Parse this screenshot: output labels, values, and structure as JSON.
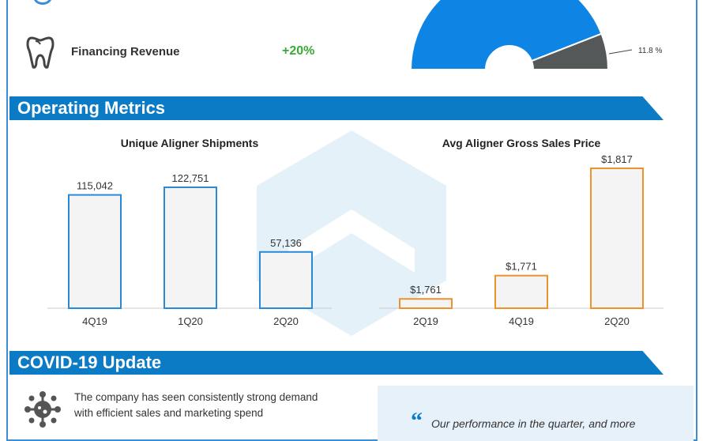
{
  "financing": {
    "label": "Financing Revenue",
    "change": "+20%",
    "icon": "tooth-icon"
  },
  "donut": {
    "slices": [
      {
        "value": 88.2,
        "color": "#0e84e4"
      },
      {
        "value": 11.8,
        "color": "#555858"
      }
    ],
    "label": "11.8 %"
  },
  "sections": {
    "operating": "Operating Metrics",
    "covid": "COVID-19 Update"
  },
  "colors": {
    "banner": "#0a7bc4",
    "green": "#3aaa35",
    "blue_bar": "#2b8ad8",
    "orange_bar": "#f0922b"
  },
  "chart_data": [
    {
      "type": "bar",
      "title": "Unique Aligner Shipments",
      "categories": [
        "4Q19",
        "1Q20",
        "2Q20"
      ],
      "values": [
        115042,
        122751,
        57136
      ],
      "labels": [
        "115,042",
        "122,751",
        "57,136"
      ],
      "ylim": [
        0,
        122751
      ]
    },
    {
      "type": "bar",
      "title": "Avg Aligner Gross Sales Price",
      "categories": [
        "2Q19",
        "4Q19",
        "2Q20"
      ],
      "values": [
        1761,
        1771,
        1817
      ],
      "labels": [
        "$1,761",
        "$1,771",
        "$1,817"
      ],
      "ylim": [
        1757,
        1817
      ]
    }
  ],
  "covid": {
    "text_line1": "The company has seen consistently strong demand",
    "text_line2": "with efficient sales and marketing spend",
    "icon": "virus-icon",
    "quote_mark": "“",
    "quote": "Our performance in the quarter, and more"
  }
}
